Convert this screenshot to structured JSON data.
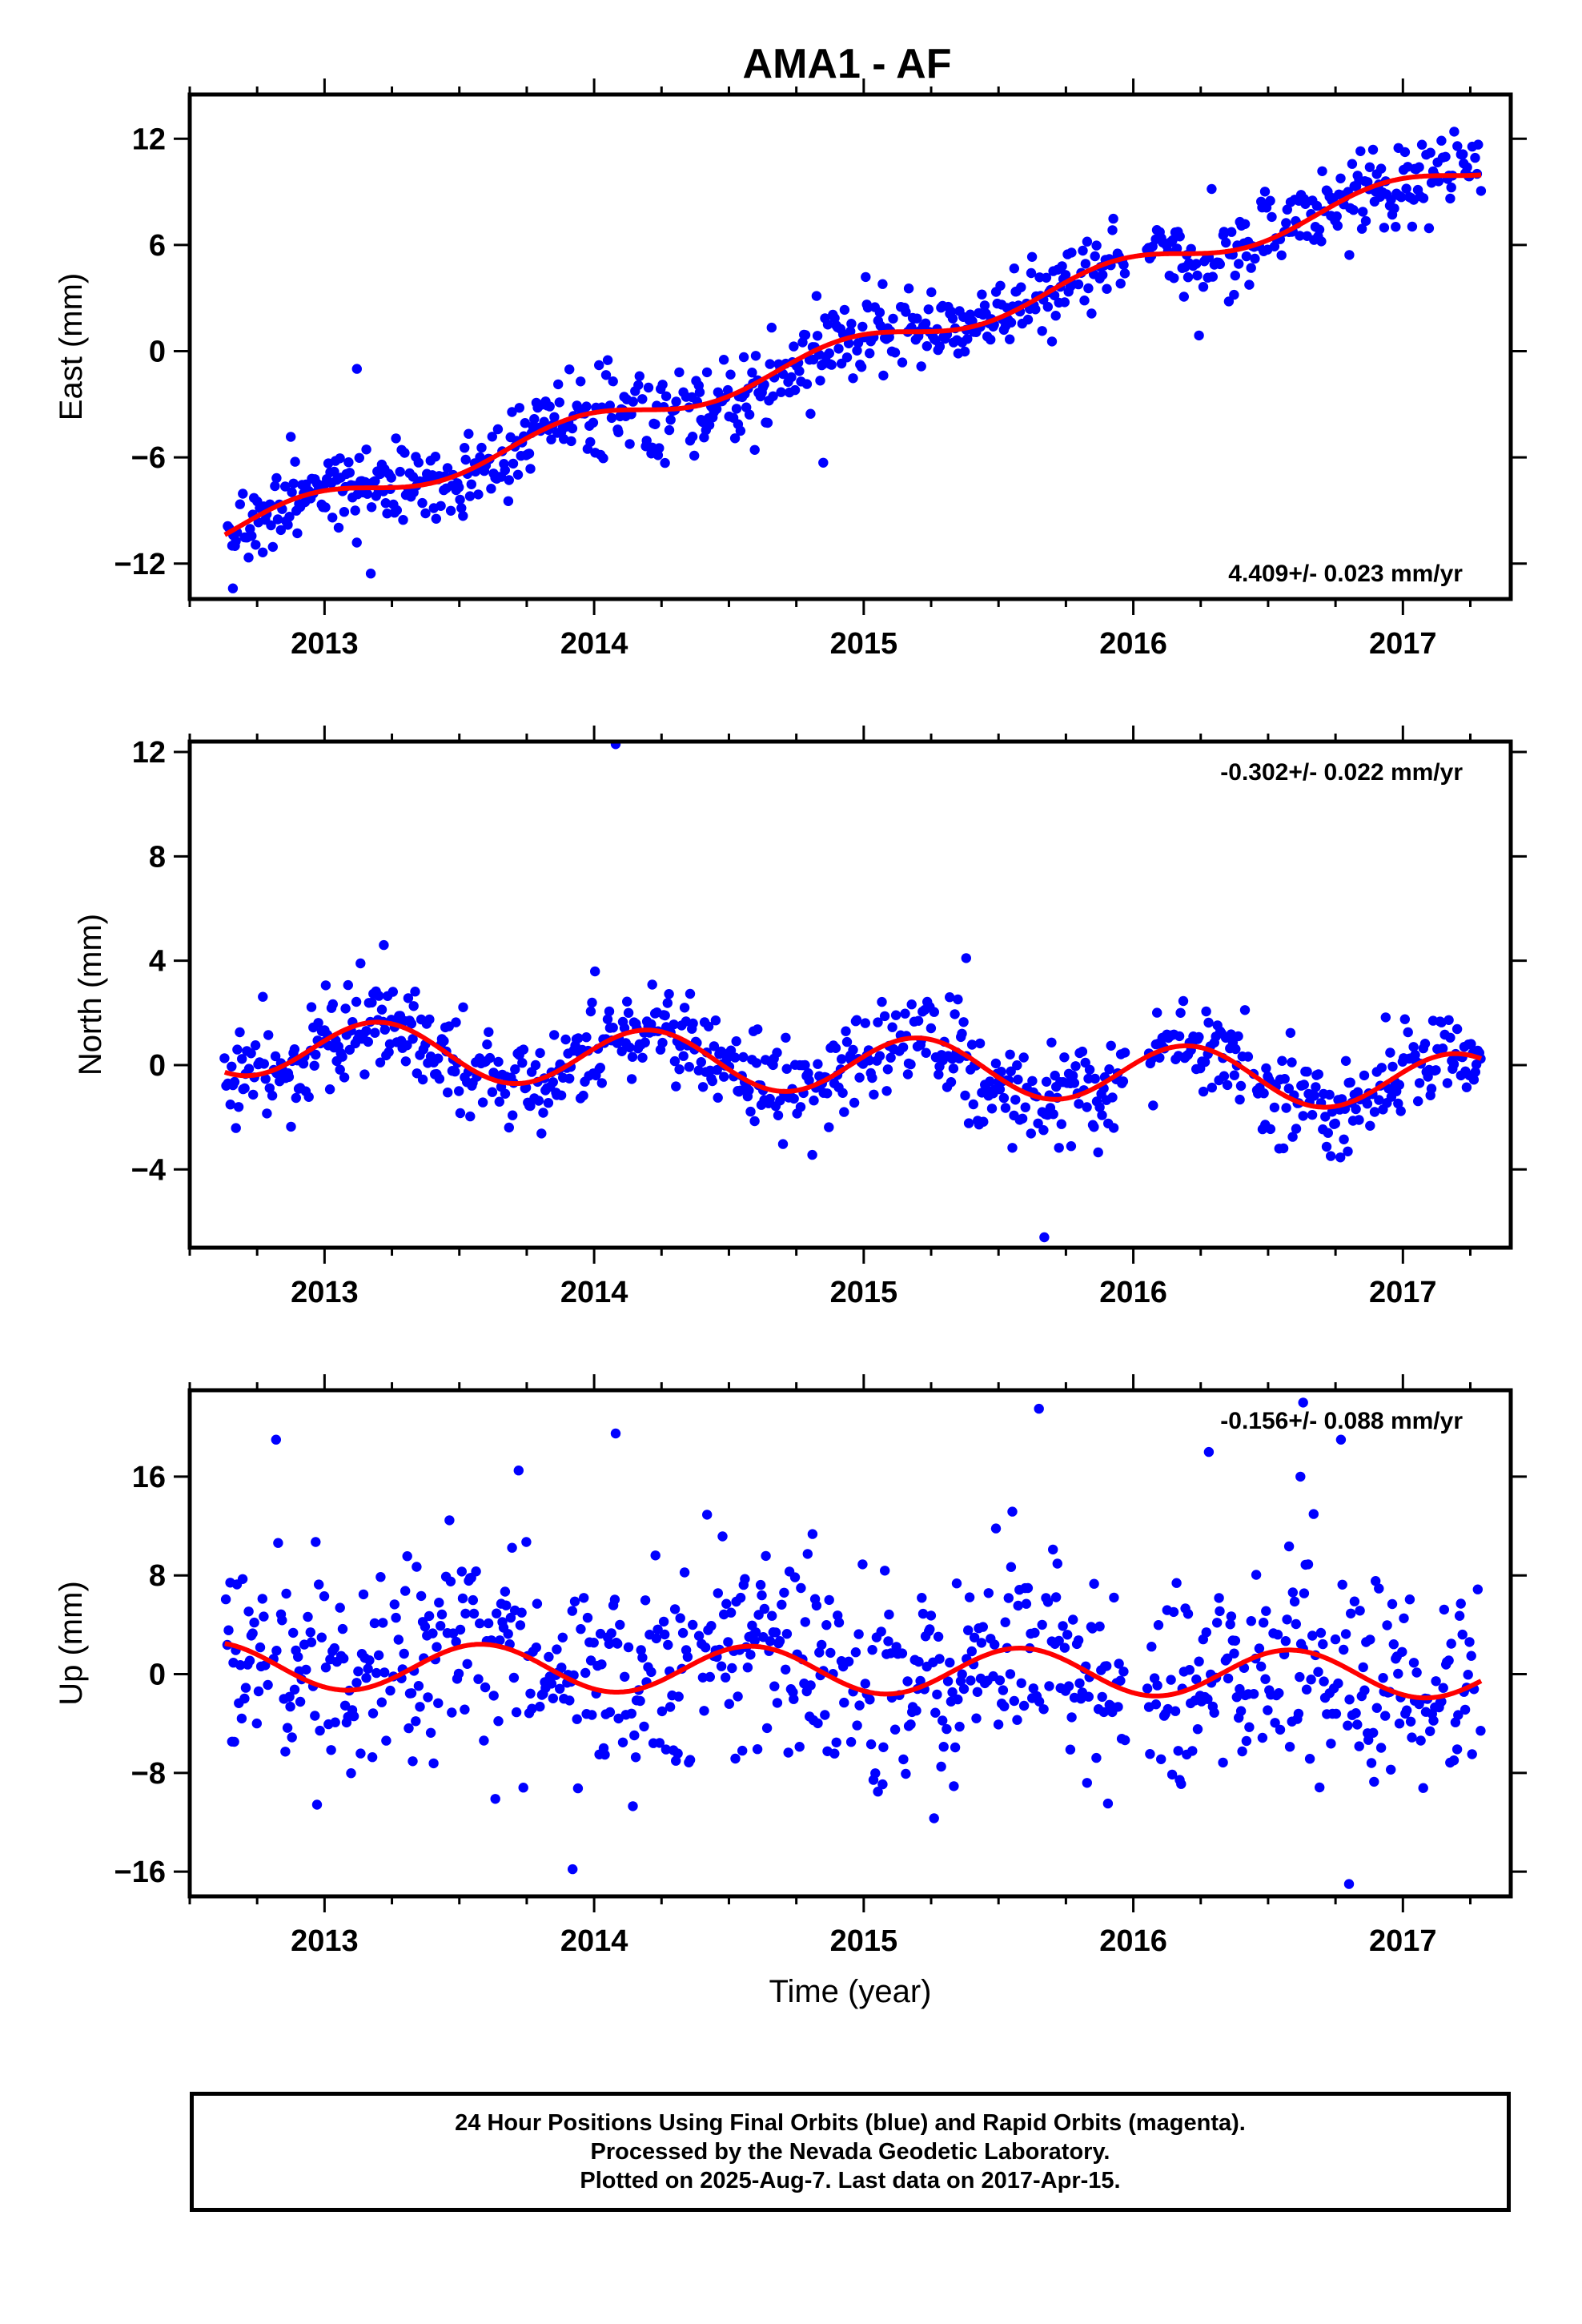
{
  "title": "AMA1 - AF",
  "colors": {
    "points": "#0000ff",
    "fit": "#ff0000",
    "axes": "#000000"
  },
  "chart_data": [
    {
      "type": "scatter",
      "ylabel": "East (mm)",
      "xlabel": "",
      "xlim": [
        2012.5,
        2017.4
      ],
      "ylim": [
        -14,
        14.5
      ],
      "xticks": [
        2013,
        2014,
        2015,
        2016,
        2017
      ],
      "xtick_labels": [
        "2013",
        "2014",
        "2015",
        "2016",
        "2017"
      ],
      "yticks": [
        -12,
        -6,
        0,
        6,
        12
      ],
      "ytick_labels": [
        "−12",
        "−6",
        "0",
        "6",
        "12"
      ],
      "rate_label": "4.409+/- 0.023 mm/yr",
      "rate_position": "bottom-right",
      "series": [
        {
          "kind": "points",
          "x_range": [
            2012.63,
            2017.29
          ],
          "trend": {
            "slope": 4.409,
            "ref_year": 2015.0,
            "offset": 0.3
          },
          "seasonal": {
            "annual_amp": 0.7,
            "phase": 2.0
          },
          "noise_sd": 1.2
        },
        {
          "kind": "fit",
          "x_range": [
            2012.63,
            2017.29
          ],
          "trend": {
            "slope": 4.409,
            "ref_year": 2015.0,
            "offset": 0.3
          },
          "seasonal": {
            "annual_amp": 0.7,
            "phase": 2.0
          }
        }
      ],
      "outliers": [
        [
          2013.12,
          -1.0
        ],
        [
          2014.85,
          -6.3
        ],
        [
          2012.66,
          -13.4
        ]
      ]
    },
    {
      "type": "scatter",
      "ylabel": "North (mm)",
      "xlabel": "",
      "xlim": [
        2012.5,
        2017.4
      ],
      "ylim": [
        -7,
        12.4
      ],
      "xticks": [
        2013,
        2014,
        2015,
        2016,
        2017
      ],
      "xtick_labels": [
        "2013",
        "2014",
        "2015",
        "2016",
        "2017"
      ],
      "yticks": [
        -4,
        0,
        4,
        8,
        12
      ],
      "ytick_labels": [
        "−4",
        "0",
        "4",
        "8",
        "12"
      ],
      "rate_label": "-0.302+/- 0.022 mm/yr",
      "rate_position": "top-right",
      "series": [
        {
          "kind": "points",
          "x_range": [
            2012.63,
            2017.29
          ],
          "trend": {
            "slope": -0.302,
            "ref_year": 2015.0,
            "offset": 0.0
          },
          "seasonal": {
            "annual_amp": 1.1,
            "phase": 0.3
          },
          "noise_sd": 0.95
        },
        {
          "kind": "fit",
          "x_range": [
            2012.63,
            2017.29
          ],
          "trend": {
            "slope": -0.302,
            "ref_year": 2015.0,
            "offset": 0.0
          },
          "seasonal": {
            "annual_amp": 1.1,
            "phase": 0.3
          }
        }
      ],
      "outliers": [
        [
          2014.08,
          12.3
        ],
        [
          2015.67,
          -6.6
        ],
        [
          2013.22,
          4.6
        ],
        [
          2015.38,
          4.1
        ]
      ]
    },
    {
      "type": "scatter",
      "ylabel": "Up (mm)",
      "xlabel": "Time (year)",
      "xlim": [
        2012.5,
        2017.4
      ],
      "ylim": [
        -18,
        23
      ],
      "xticks": [
        2013,
        2014,
        2015,
        2016,
        2017
      ],
      "xtick_labels": [
        "2013",
        "2014",
        "2015",
        "2016",
        "2017"
      ],
      "yticks": [
        -16,
        -8,
        0,
        8,
        16
      ],
      "ytick_labels": [
        "−16",
        "−8",
        "0",
        "8",
        "16"
      ],
      "rate_label": "-0.156+/- 0.088 mm/yr",
      "rate_position": "top-right",
      "series": [
        {
          "kind": "points",
          "x_range": [
            2012.63,
            2017.29
          ],
          "trend": {
            "slope": -0.156,
            "ref_year": 2015.0,
            "offset": 0.3
          },
          "seasonal": {
            "annual_amp": 1.9,
            "phase": 4.2
          },
          "noise_sd": 4.2
        },
        {
          "kind": "fit",
          "x_range": [
            2012.63,
            2017.29
          ],
          "trend": {
            "slope": -0.156,
            "ref_year": 2015.0,
            "offset": 0.3
          },
          "seasonal": {
            "annual_amp": 1.9,
            "phase": 4.2
          }
        }
      ],
      "outliers": [
        [
          2015.65,
          21.5
        ],
        [
          2016.63,
          22.0
        ],
        [
          2014.08,
          19.5
        ],
        [
          2012.82,
          19.0
        ],
        [
          2016.28,
          18.0
        ],
        [
          2013.72,
          16.5
        ],
        [
          2016.62,
          16.0
        ],
        [
          2016.77,
          19.0
        ],
        [
          2013.92,
          -15.8
        ],
        [
          2016.8,
          -17.0
        ]
      ]
    }
  ],
  "footer": {
    "line1": "24 Hour Positions Using Final Orbits (blue) and Rapid Orbits (magenta).",
    "line2": "Processed by the Nevada Geodetic Laboratory.",
    "line3": "Plotted on 2025-Aug-7. Last data on 2017-Apr-15."
  }
}
